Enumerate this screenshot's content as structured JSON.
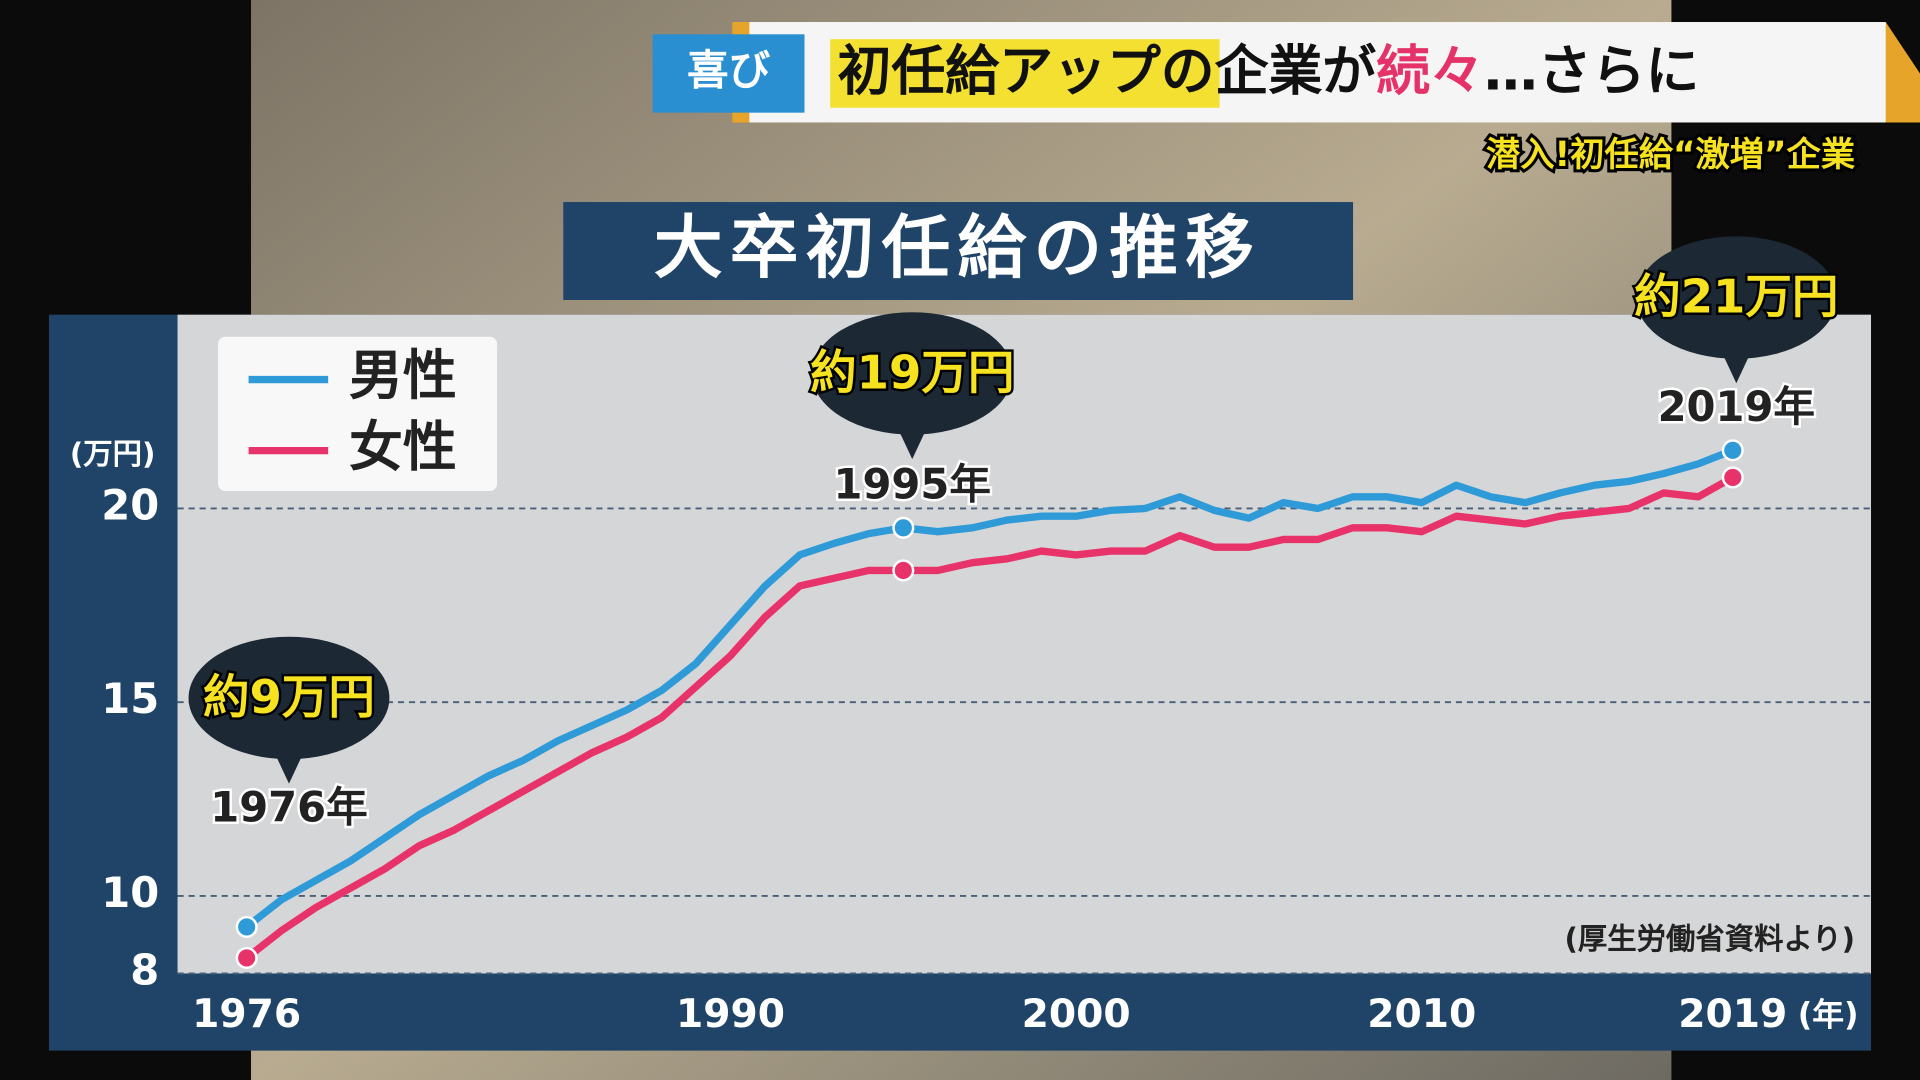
{
  "header": {
    "tag": "喜び",
    "headline": [
      "初任給アップ",
      "の企業が",
      "続々",
      "…さらに"
    ],
    "subtitle": "潜入!初任給“激増”企業"
  },
  "chart_data": {
    "type": "line",
    "title": "大卒初任給の推移",
    "y_unit": "(万円)",
    "x_unit": "(年)",
    "source": "(厚生労働省資料より)",
    "x": [
      1976,
      1977,
      1978,
      1979,
      1980,
      1981,
      1982,
      1983,
      1984,
      1985,
      1986,
      1987,
      1988,
      1989,
      1990,
      1991,
      1992,
      1993,
      1994,
      1995,
      1996,
      1997,
      1998,
      1999,
      2000,
      2001,
      2002,
      2003,
      2004,
      2005,
      2006,
      2007,
      2008,
      2009,
      2010,
      2011,
      2012,
      2013,
      2014,
      2015,
      2016,
      2017,
      2018,
      2019
    ],
    "series": [
      {
        "name": "男性",
        "color": "#2f9ad8",
        "values": [
          9.2,
          9.9,
          10.4,
          10.9,
          11.5,
          12.1,
          12.6,
          13.1,
          13.5,
          14.0,
          14.4,
          14.8,
          15.3,
          16.0,
          17.0,
          18.0,
          18.8,
          19.1,
          19.35,
          19.5,
          19.4,
          19.5,
          19.7,
          19.8,
          19.8,
          19.95,
          20.0,
          20.3,
          19.95,
          19.75,
          20.15,
          20.0,
          20.3,
          20.3,
          20.15,
          20.6,
          20.3,
          20.15,
          20.4,
          20.6,
          20.7,
          20.9,
          21.15,
          21.5
        ]
      },
      {
        "name": "女性",
        "color": "#e8336a",
        "values": [
          8.4,
          9.1,
          9.7,
          10.2,
          10.7,
          11.3,
          11.7,
          12.2,
          12.7,
          13.2,
          13.7,
          14.1,
          14.6,
          15.4,
          16.2,
          17.2,
          18.0,
          18.2,
          18.4,
          18.4,
          18.4,
          18.6,
          18.7,
          18.9,
          18.8,
          18.9,
          18.9,
          19.3,
          19.0,
          19.0,
          19.2,
          19.2,
          19.5,
          19.5,
          19.4,
          19.8,
          19.7,
          19.6,
          19.8,
          19.9,
          20.0,
          20.4,
          20.3,
          20.8
        ]
      }
    ],
    "xlim": [
      1974,
      2023
    ],
    "xticks": [
      1976,
      1990,
      2000,
      2010,
      2019
    ],
    "ylim": [
      8,
      25
    ],
    "yticks": [
      8,
      10,
      15,
      20
    ],
    "grid": true,
    "annotations": [
      {
        "label": "約9万円",
        "year": "1976年"
      },
      {
        "label": "約19万円",
        "year": "1995年"
      },
      {
        "label": "約21万円",
        "year": "2019年"
      }
    ]
  }
}
